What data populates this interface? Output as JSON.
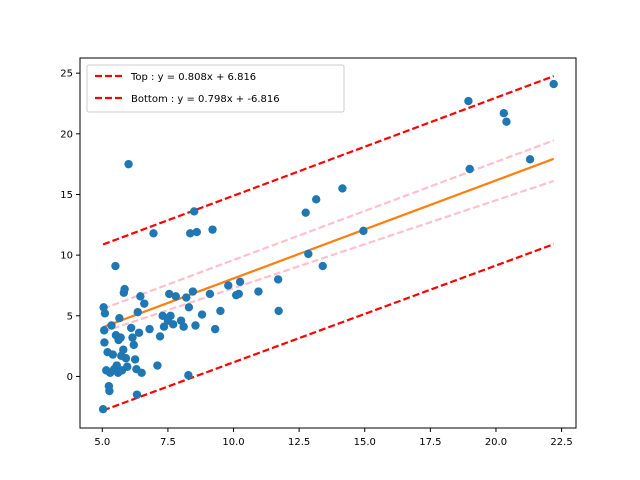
{
  "chart_data": {
    "type": "scatter",
    "xlim": [
      4.15,
      23.05
    ],
    "ylim": [
      -4.25,
      26.25
    ],
    "xticks": [
      5.0,
      7.5,
      10.0,
      12.5,
      15.0,
      17.5,
      20.0,
      22.5
    ],
    "xtick_labels": [
      "5.0",
      "7.5",
      "10.0",
      "12.5",
      "15.0",
      "17.5",
      "20.0",
      "22.5"
    ],
    "yticks": [
      0,
      5,
      10,
      15,
      20,
      25
    ],
    "ytick_labels": [
      "0",
      "5",
      "10",
      "15",
      "20",
      "25"
    ],
    "grid": false,
    "legend_position": "top-left",
    "legend": [
      {
        "label": "Top : y = 0.808x + 6.816",
        "color": "#ff0000",
        "style": "dashed"
      },
      {
        "label": "Bottom : y = 0.798x + -6.816",
        "color": "#ff0000",
        "style": "dashed"
      }
    ],
    "points_color": "#1f77b4",
    "points": [
      [
        5.03,
        -2.7
      ],
      [
        5.05,
        5.7
      ],
      [
        5.07,
        3.8
      ],
      [
        5.1,
        5.2
      ],
      [
        5.08,
        2.8
      ],
      [
        5.15,
        0.5
      ],
      [
        5.2,
        2.0
      ],
      [
        5.25,
        -0.8
      ],
      [
        5.27,
        -1.2
      ],
      [
        5.3,
        0.3
      ],
      [
        5.35,
        4.2
      ],
      [
        5.4,
        1.8
      ],
      [
        5.45,
        0.6
      ],
      [
        5.5,
        9.1
      ],
      [
        5.52,
        3.4
      ],
      [
        5.55,
        0.9
      ],
      [
        5.6,
        0.3
      ],
      [
        5.62,
        3.0
      ],
      [
        5.65,
        4.8
      ],
      [
        5.7,
        3.2
      ],
      [
        5.72,
        1.7
      ],
      [
        5.75,
        0.5
      ],
      [
        5.8,
        2.2
      ],
      [
        5.82,
        6.9
      ],
      [
        5.85,
        7.2
      ],
      [
        5.9,
        1.5
      ],
      [
        5.95,
        0.8
      ],
      [
        6.0,
        17.5
      ],
      [
        6.1,
        4.0
      ],
      [
        6.15,
        3.2
      ],
      [
        6.2,
        2.6
      ],
      [
        6.25,
        1.4
      ],
      [
        6.3,
        0.6
      ],
      [
        6.32,
        -1.5
      ],
      [
        6.35,
        5.3
      ],
      [
        6.4,
        3.6
      ],
      [
        6.45,
        6.6
      ],
      [
        6.5,
        0.3
      ],
      [
        6.6,
        6.0
      ],
      [
        6.8,
        3.9
      ],
      [
        6.95,
        11.8
      ],
      [
        7.1,
        0.9
      ],
      [
        7.2,
        3.3
      ],
      [
        7.3,
        5.0
      ],
      [
        7.35,
        4.1
      ],
      [
        7.5,
        4.6
      ],
      [
        7.55,
        6.8
      ],
      [
        7.6,
        5.0
      ],
      [
        7.7,
        4.3
      ],
      [
        7.8,
        6.6
      ],
      [
        8.0,
        4.6
      ],
      [
        8.1,
        4.1
      ],
      [
        8.2,
        6.5
      ],
      [
        8.3,
        5.7
      ],
      [
        8.28,
        0.1
      ],
      [
        8.35,
        11.8
      ],
      [
        8.45,
        7.0
      ],
      [
        8.5,
        13.6
      ],
      [
        8.55,
        4.2
      ],
      [
        8.6,
        11.9
      ],
      [
        8.8,
        5.1
      ],
      [
        9.1,
        6.8
      ],
      [
        9.2,
        12.1
      ],
      [
        9.3,
        3.9
      ],
      [
        9.5,
        5.4
      ],
      [
        9.8,
        7.5
      ],
      [
        10.1,
        6.7
      ],
      [
        10.2,
        6.8
      ],
      [
        10.25,
        7.8
      ],
      [
        10.95,
        7.0
      ],
      [
        11.7,
        8.0
      ],
      [
        11.72,
        5.4
      ],
      [
        12.75,
        13.5
      ],
      [
        12.85,
        10.1
      ],
      [
        13.15,
        14.6
      ],
      [
        13.4,
        9.1
      ],
      [
        14.15,
        15.5
      ],
      [
        14.95,
        12.0
      ],
      [
        18.95,
        22.7
      ],
      [
        19.0,
        17.1
      ],
      [
        20.3,
        21.7
      ],
      [
        20.4,
        21.0
      ],
      [
        21.3,
        17.9
      ],
      [
        22.2,
        24.1
      ]
    ],
    "lines": [
      {
        "name": "Top",
        "slope": 0.808,
        "intercept": 6.816,
        "x_range": [
          5.03,
          22.2
        ],
        "color": "#ff0000",
        "width": 2.2,
        "dash": "7,3"
      },
      {
        "name": "Bottom",
        "slope": 0.798,
        "intercept": -6.816,
        "x_range": [
          5.03,
          22.2
        ],
        "color": "#ff0000",
        "width": 2.2,
        "dash": "7,3"
      },
      {
        "slope": 0.808,
        "intercept": 1.52,
        "x_range": [
          5.03,
          22.2
        ],
        "color": "#ffc0cb",
        "width": 2.2,
        "dash": "7,3"
      },
      {
        "slope": 0.724,
        "intercept": 0.04,
        "x_range": [
          5.03,
          22.2
        ],
        "color": "#ffc0cb",
        "width": 2.2,
        "dash": "7,3"
      },
      {
        "slope": 0.808,
        "intercept": 0.0,
        "x_range": [
          5.03,
          22.2
        ],
        "color": "#ff7f0e",
        "width": 2.2,
        "dash": ""
      }
    ]
  }
}
